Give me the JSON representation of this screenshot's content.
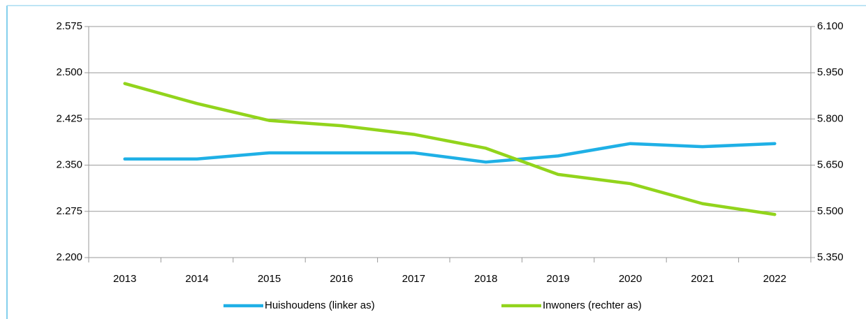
{
  "chart_data": {
    "type": "line",
    "categories": [
      "2013",
      "2014",
      "2015",
      "2016",
      "2017",
      "2018",
      "2019",
      "2020",
      "2021",
      "2022"
    ],
    "series": [
      {
        "name": "Huishoudens (linker as)",
        "color": "#1fb0e6",
        "values": [
          2360,
          2360,
          2370,
          2370,
          2370,
          2355,
          2365,
          2385,
          2380,
          2385
        ]
      },
      {
        "name": "Inwoners (rechter as)",
        "color": "#92d41c",
        "axis": "y2",
        "values": [
          5915,
          5850,
          5795,
          5778,
          5750,
          5705,
          5620,
          5590,
          5525,
          5490
        ]
      }
    ],
    "ylim": [
      2200,
      2575
    ],
    "yticks": [
      {
        "value": 2200,
        "label": "2.200"
      },
      {
        "value": 2275,
        "label": "2.275"
      },
      {
        "value": 2350,
        "label": "2.350"
      },
      {
        "value": 2425,
        "label": "2.425"
      },
      {
        "value": 2500,
        "label": "2.500"
      },
      {
        "value": 2575,
        "label": "2.575"
      }
    ],
    "y2lim": [
      5350,
      6100
    ],
    "y2ticks": [
      {
        "value": 5350,
        "label": "5.350"
      },
      {
        "value": 5500,
        "label": "5.500"
      },
      {
        "value": 5650,
        "label": "5.650"
      },
      {
        "value": 5800,
        "label": "5.800"
      },
      {
        "value": 5950,
        "label": "5.950"
      },
      {
        "value": 6100,
        "label": "6.100"
      }
    ],
    "grid": true,
    "legend": "bottom"
  }
}
